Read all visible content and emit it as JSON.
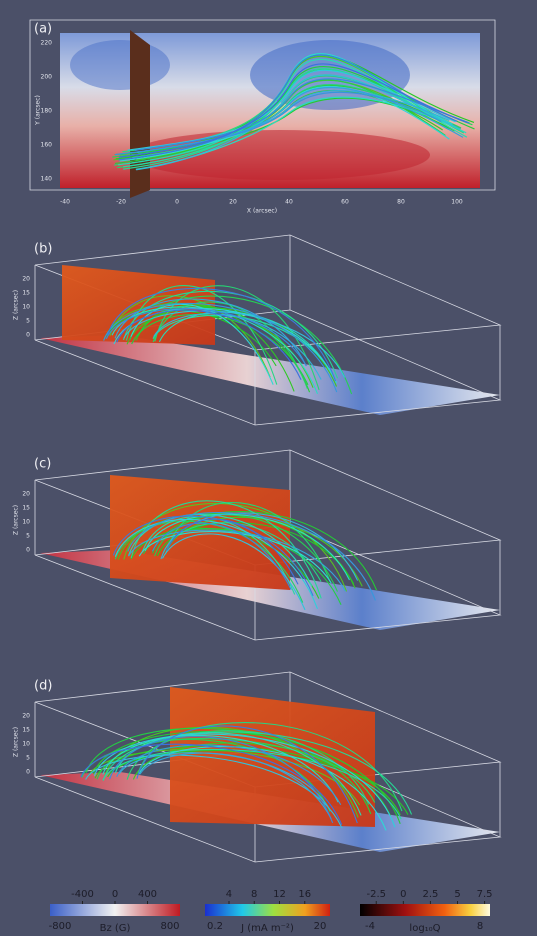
{
  "panels": [
    {
      "label": "(a)",
      "x_axis": {
        "label": "X (arcsec)",
        "ticks": [
          -40,
          -20,
          0,
          20,
          40,
          60,
          80,
          100
        ]
      },
      "y_axis": {
        "label": "Y (arcsec)",
        "ticks": [
          220,
          200,
          180,
          160,
          140
        ]
      }
    },
    {
      "label": "(b)",
      "z_axis": {
        "label": "Z (arcsec)",
        "ticks": [
          0,
          5,
          10,
          15,
          20
        ]
      }
    },
    {
      "label": "(c)",
      "z_axis": {
        "label": "Z (arcsec)",
        "ticks": [
          0,
          5,
          10,
          15,
          20
        ]
      }
    },
    {
      "label": "(d)",
      "z_axis": {
        "label": "Z (arcsec)",
        "ticks": [
          0,
          5,
          10,
          15,
          20
        ]
      }
    }
  ],
  "colorbars": [
    {
      "label": "Bz (G)",
      "lim": [
        -800,
        800
      ],
      "ticks": [
        -400,
        0,
        400
      ]
    },
    {
      "label": "J (mA m⁻²)",
      "lim": [
        0.2,
        20
      ],
      "ticks": [
        4,
        8,
        12,
        16
      ]
    },
    {
      "label": "log₁₀Q",
      "lim": [
        -4,
        8
      ],
      "ticks": [
        -2.5,
        0,
        2.5,
        5,
        7.5
      ]
    }
  ]
}
